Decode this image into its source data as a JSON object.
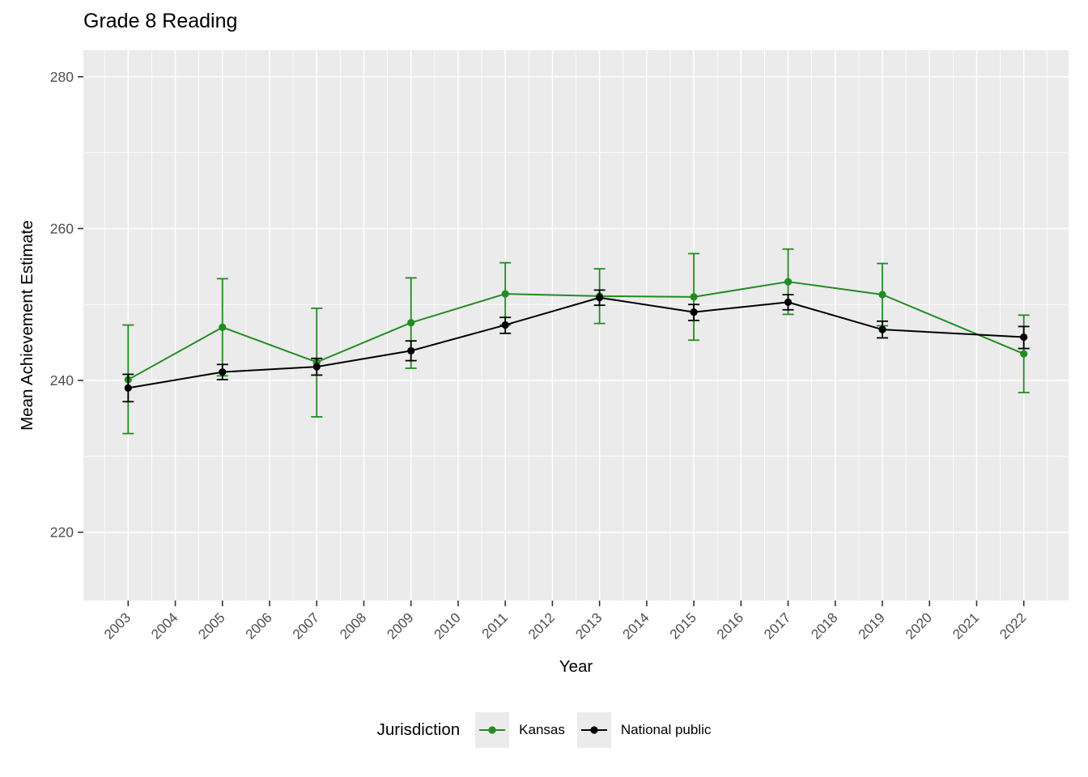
{
  "title": "Grade 8 Reading",
  "x_axis": {
    "label": "Year"
  },
  "y_axis": {
    "label": "Mean Achievement Estimate"
  },
  "legend": {
    "title": "Jurisdiction",
    "entries": [
      {
        "label": "Kansas",
        "color": "#228B22"
      },
      {
        "label": "National public",
        "color": "#000000"
      }
    ]
  },
  "style": {
    "panel_background": "#EBEBEB",
    "grid_color": "#FFFFFF",
    "tick_mark_color": "#333333",
    "tick_label_color": "#4D4D4D"
  },
  "chart_data": {
    "type": "line",
    "title": "Grade 8 Reading",
    "xlabel": "Year",
    "ylabel": "Mean Achievement Estimate",
    "legend_title": "Jurisdiction",
    "legend_position": "bottom",
    "grid": true,
    "x": [
      2003,
      2005,
      2007,
      2009,
      2011,
      2013,
      2015,
      2017,
      2019,
      2022
    ],
    "series": [
      {
        "name": "Kansas",
        "color": "#228B22",
        "values": [
          240.1,
          247.0,
          242.4,
          247.6,
          251.4,
          251.1,
          251.0,
          253.0,
          251.3,
          243.5
        ],
        "error_low": [
          233.0,
          240.6,
          235.2,
          241.6,
          247.3,
          247.5,
          245.3,
          248.7,
          247.2,
          238.4
        ],
        "error_high": [
          247.3,
          253.4,
          249.5,
          253.5,
          255.5,
          254.7,
          256.7,
          257.3,
          255.4,
          248.6
        ]
      },
      {
        "name": "National public",
        "color": "#000000",
        "values": [
          239.0,
          241.1,
          241.8,
          243.9,
          247.3,
          250.9,
          249.0,
          250.3,
          246.7,
          245.7
        ],
        "error_low": [
          237.2,
          240.1,
          240.7,
          242.6,
          246.2,
          249.9,
          247.9,
          249.3,
          245.6,
          244.2
        ],
        "error_high": [
          240.8,
          242.1,
          242.9,
          245.2,
          248.3,
          251.9,
          250.0,
          251.3,
          247.8,
          247.1
        ]
      }
    ],
    "x_ticks": [
      2003,
      2004,
      2005,
      2006,
      2007,
      2008,
      2009,
      2010,
      2011,
      2012,
      2013,
      2014,
      2015,
      2016,
      2017,
      2018,
      2019,
      2020,
      2021,
      2022
    ],
    "x_tick_labels": [
      "2003",
      "2004",
      "2005",
      "2006",
      "2007",
      "2008",
      "2009",
      "2010",
      "2011",
      "2012",
      "2013",
      "2014",
      "2015",
      "2016",
      "2017",
      "2018",
      "2019",
      "2020",
      "2021",
      "2022"
    ],
    "x_minor": [
      2002.5,
      2003.5,
      2004.5,
      2005.5,
      2006.5,
      2007.5,
      2008.5,
      2009.5,
      2010.5,
      2011.5,
      2012.5,
      2013.5,
      2014.5,
      2015.5,
      2016.5,
      2017.5,
      2018.5,
      2019.5,
      2020.5,
      2021.5,
      2022.5
    ],
    "y_ticks": [
      220,
      240,
      260,
      280
    ],
    "y_tick_labels": [
      "220",
      "240",
      "260",
      "280"
    ],
    "y_minor": [
      230,
      250,
      270
    ],
    "xlim": [
      2002.05,
      2022.95
    ],
    "ylim": [
      211.0,
      283.5
    ]
  }
}
